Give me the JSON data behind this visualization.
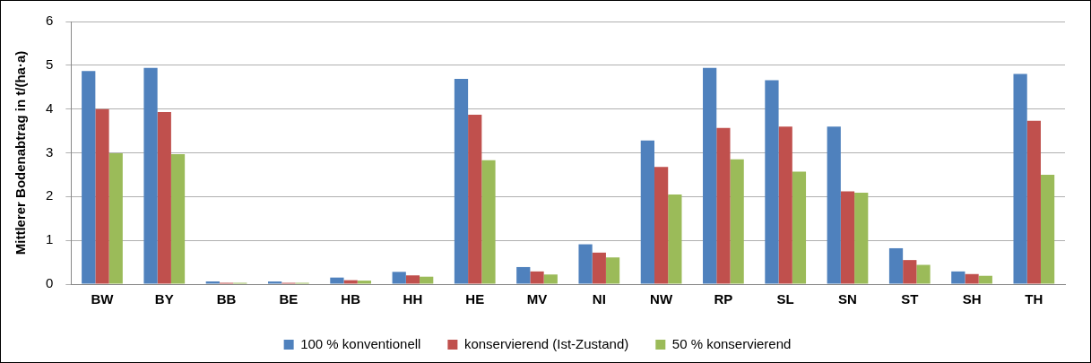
{
  "chart_data": {
    "type": "bar",
    "ylabel": "Mittlerer Bodenabtrag in t/(ha·a)",
    "categories": [
      "BW",
      "BY",
      "BB",
      "BE",
      "HB",
      "HH",
      "HE",
      "MV",
      "NI",
      "NW",
      "RP",
      "SL",
      "SN",
      "ST",
      "SH",
      "TH"
    ],
    "series": [
      {
        "name": "100 % konventionell",
        "color": "#4f81bd",
        "values": [
          4.87,
          4.94,
          0.06,
          0.06,
          0.15,
          0.28,
          4.69,
          0.39,
          0.91,
          3.28,
          4.94,
          4.66,
          3.6,
          0.82,
          0.29,
          4.8
        ]
      },
      {
        "name": "konservierend (Ist-Zustand)",
        "color": "#c0504d",
        "values": [
          4.0,
          3.93,
          0.03,
          0.03,
          0.09,
          0.2,
          3.87,
          0.29,
          0.72,
          2.68,
          3.57,
          3.6,
          2.12,
          0.55,
          0.23,
          3.73
        ]
      },
      {
        "name": "50 % konservierend",
        "color": "#9bbb59",
        "values": [
          2.99,
          2.97,
          0.03,
          0.03,
          0.08,
          0.17,
          2.83,
          0.22,
          0.61,
          2.05,
          2.85,
          2.57,
          2.09,
          0.44,
          0.19,
          2.5
        ]
      }
    ],
    "ylim": [
      0,
      6
    ],
    "yticks": [
      0,
      1,
      2,
      3,
      4,
      5,
      6
    ],
    "grid": "y",
    "legend": "bottom"
  }
}
